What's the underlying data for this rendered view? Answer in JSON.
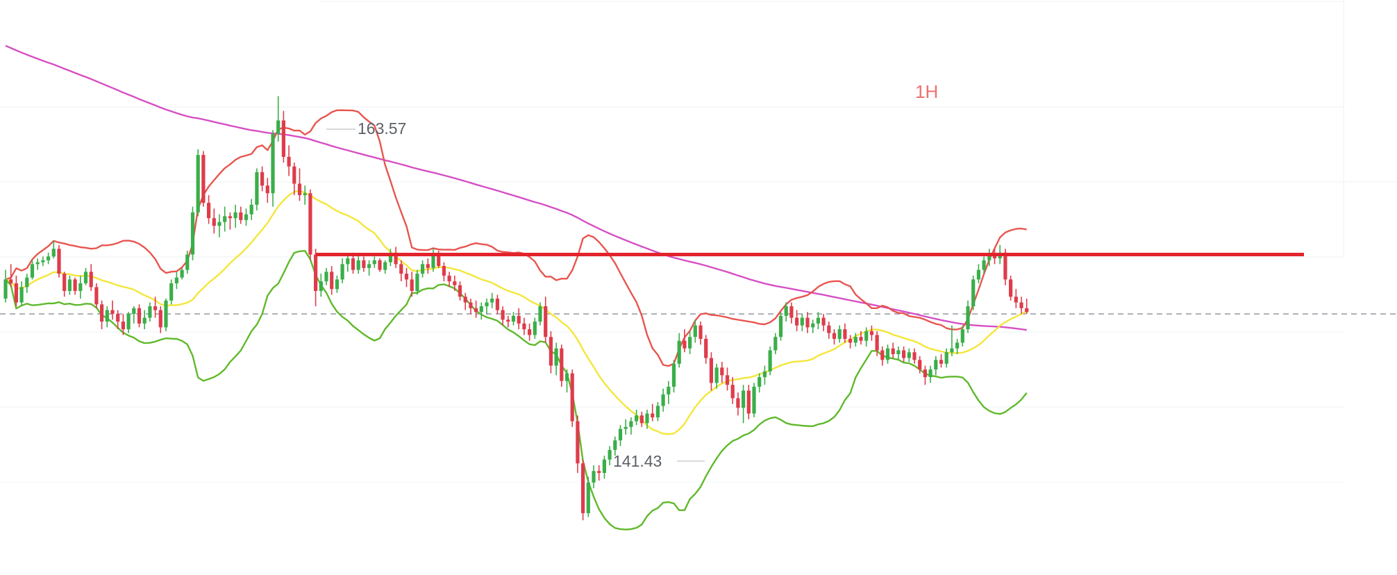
{
  "chart_data": {
    "type": "candlestick",
    "timeframe_label": "1H",
    "high_label": "163.57",
    "low_label": "141.43",
    "y_range": [
      138.5,
      167.5
    ],
    "grid": true,
    "horizontal_level": 155.3,
    "current_price_line": 152.2,
    "candles": [
      [
        153.0,
        154.5,
        152.8,
        154.0
      ],
      [
        154.0,
        154.8,
        153.6,
        153.8
      ],
      [
        153.8,
        154.2,
        152.6,
        152.8
      ],
      [
        152.8,
        153.9,
        152.6,
        153.6
      ],
      [
        153.6,
        154.3,
        153.3,
        154.1
      ],
      [
        154.1,
        155.0,
        154.0,
        154.8
      ],
      [
        154.8,
        155.1,
        154.5,
        154.9
      ],
      [
        154.9,
        155.2,
        154.7,
        155.0
      ],
      [
        155.0,
        155.4,
        154.8,
        155.2
      ],
      [
        155.2,
        156.0,
        155.1,
        155.6
      ],
      [
        155.6,
        155.8,
        154.1,
        154.3
      ],
      [
        154.3,
        154.4,
        153.1,
        153.4
      ],
      [
        153.4,
        154.2,
        153.2,
        154.0
      ],
      [
        154.0,
        154.1,
        153.2,
        153.4
      ],
      [
        153.4,
        154.2,
        153.0,
        153.8
      ],
      [
        153.8,
        154.6,
        153.7,
        154.4
      ],
      [
        154.4,
        154.8,
        153.4,
        153.6
      ],
      [
        153.6,
        153.8,
        152.5,
        152.7
      ],
      [
        152.7,
        152.9,
        151.4,
        151.8
      ],
      [
        151.8,
        152.6,
        151.5,
        152.4
      ],
      [
        152.4,
        152.9,
        151.9,
        152.2
      ],
      [
        152.2,
        152.4,
        151.4,
        151.8
      ],
      [
        151.8,
        152.2,
        151.1,
        151.4
      ],
      [
        151.4,
        152.3,
        151.2,
        152.2
      ],
      [
        152.2,
        152.6,
        151.7,
        152.5
      ],
      [
        152.5,
        152.7,
        151.5,
        151.7
      ],
      [
        151.7,
        152.4,
        151.4,
        152.0
      ],
      [
        152.0,
        152.8,
        151.8,
        152.6
      ],
      [
        152.6,
        153.1,
        152.0,
        152.4
      ],
      [
        152.4,
        152.6,
        151.2,
        151.5
      ],
      [
        151.5,
        153.0,
        151.3,
        152.9
      ],
      [
        152.9,
        154.0,
        152.7,
        153.8
      ],
      [
        153.8,
        154.4,
        153.5,
        154.1
      ],
      [
        154.1,
        154.6,
        154.0,
        154.5
      ],
      [
        154.5,
        155.5,
        154.3,
        155.3
      ],
      [
        155.3,
        157.8,
        155.0,
        157.5
      ],
      [
        157.5,
        160.8,
        157.3,
        160.5
      ],
      [
        160.5,
        160.7,
        157.8,
        158.0
      ],
      [
        158.0,
        158.4,
        156.9,
        157.2
      ],
      [
        157.2,
        157.7,
        156.4,
        156.8
      ],
      [
        156.8,
        157.4,
        156.2,
        157.0
      ],
      [
        157.0,
        157.8,
        156.5,
        157.3
      ],
      [
        157.3,
        157.5,
        156.6,
        157.2
      ],
      [
        157.2,
        157.9,
        156.7,
        157.5
      ],
      [
        157.5,
        157.8,
        156.9,
        157.1
      ],
      [
        157.1,
        157.7,
        156.8,
        157.4
      ],
      [
        157.4,
        158.2,
        157.1,
        157.9
      ],
      [
        157.9,
        159.8,
        157.6,
        159.6
      ],
      [
        159.6,
        159.9,
        158.6,
        158.9
      ],
      [
        158.9,
        159.3,
        158.0,
        158.5
      ],
      [
        158.5,
        161.8,
        157.8,
        161.6
      ],
      [
        161.6,
        163.57,
        161.2,
        162.3
      ],
      [
        162.3,
        162.8,
        160.1,
        160.4
      ],
      [
        160.4,
        161.0,
        159.4,
        159.9
      ],
      [
        159.9,
        160.1,
        158.4,
        159.0
      ],
      [
        159.0,
        159.8,
        158.1,
        158.4
      ],
      [
        158.4,
        158.9,
        157.9,
        158.5
      ],
      [
        158.5,
        158.7,
        155.0,
        155.3
      ],
      [
        155.3,
        155.6,
        152.6,
        153.4
      ],
      [
        153.4,
        154.3,
        153.1,
        153.9
      ],
      [
        153.9,
        154.6,
        153.7,
        154.4
      ],
      [
        154.4,
        154.7,
        153.2,
        153.5
      ],
      [
        153.5,
        154.2,
        153.3,
        154.0
      ],
      [
        154.0,
        155.1,
        153.8,
        154.8
      ],
      [
        154.8,
        155.3,
        154.4,
        155.1
      ],
      [
        155.1,
        155.4,
        154.3,
        154.5
      ],
      [
        154.5,
        155.3,
        154.3,
        155.0
      ],
      [
        155.0,
        155.2,
        154.4,
        154.6
      ],
      [
        154.6,
        155.0,
        154.2,
        154.8
      ],
      [
        154.8,
        155.2,
        154.6,
        155.0
      ],
      [
        155.0,
        155.1,
        154.4,
        154.5
      ],
      [
        154.5,
        155.0,
        154.3,
        154.9
      ],
      [
        154.9,
        155.6,
        154.7,
        155.4
      ],
      [
        155.4,
        155.7,
        154.6,
        154.8
      ],
      [
        154.8,
        155.0,
        153.9,
        154.3
      ],
      [
        154.3,
        154.6,
        153.6,
        154.0
      ],
      [
        154.0,
        154.4,
        153.1,
        153.4
      ],
      [
        153.4,
        154.5,
        153.2,
        154.3
      ],
      [
        154.3,
        155.0,
        154.1,
        154.8
      ],
      [
        154.8,
        155.1,
        154.3,
        154.6
      ],
      [
        154.6,
        155.6,
        154.4,
        155.3
      ],
      [
        155.3,
        155.5,
        154.6,
        154.7
      ],
      [
        154.7,
        154.9,
        153.9,
        154.2
      ],
      [
        154.2,
        154.4,
        153.6,
        153.9
      ],
      [
        153.9,
        154.2,
        153.4,
        153.7
      ],
      [
        153.7,
        153.9,
        152.9,
        153.1
      ],
      [
        153.1,
        153.3,
        152.4,
        152.8
      ],
      [
        152.8,
        153.0,
        152.2,
        152.5
      ],
      [
        152.5,
        152.9,
        152.0,
        152.3
      ],
      [
        152.3,
        152.8,
        151.9,
        152.6
      ],
      [
        152.6,
        153.0,
        152.2,
        152.8
      ],
      [
        152.8,
        153.3,
        152.5,
        153.0
      ],
      [
        153.0,
        153.2,
        152.2,
        152.4
      ],
      [
        152.4,
        152.6,
        151.6,
        151.9
      ],
      [
        151.9,
        152.1,
        151.5,
        151.8
      ],
      [
        151.8,
        152.3,
        151.6,
        152.1
      ],
      [
        152.1,
        152.5,
        151.4,
        151.7
      ],
      [
        151.7,
        152.0,
        151.1,
        151.4
      ],
      [
        151.4,
        151.7,
        150.8,
        151.1
      ],
      [
        151.1,
        152.0,
        150.9,
        151.8
      ],
      [
        151.8,
        152.8,
        151.6,
        152.6
      ],
      [
        152.6,
        153.1,
        150.7,
        151.0
      ],
      [
        151.0,
        151.3,
        149.1,
        149.5
      ],
      [
        149.5,
        150.7,
        149.0,
        150.4
      ],
      [
        150.4,
        150.6,
        148.4,
        148.7
      ],
      [
        148.7,
        149.3,
        148.1,
        149.1
      ],
      [
        149.1,
        149.3,
        146.3,
        146.6
      ],
      [
        146.6,
        146.9,
        143.9,
        144.4
      ],
      [
        144.4,
        144.6,
        141.43,
        141.8
      ],
      [
        141.8,
        143.7,
        141.6,
        143.4
      ],
      [
        143.4,
        144.3,
        143.1,
        144.0
      ],
      [
        144.0,
        144.3,
        143.5,
        143.9
      ],
      [
        143.9,
        144.8,
        143.6,
        144.6
      ],
      [
        144.6,
        145.3,
        144.3,
        145.1
      ],
      [
        145.1,
        145.8,
        144.8,
        145.6
      ],
      [
        145.6,
        146.4,
        145.3,
        146.2
      ],
      [
        146.2,
        146.7,
        145.9,
        146.3
      ],
      [
        146.3,
        146.8,
        145.9,
        146.6
      ],
      [
        146.6,
        147.2,
        146.4,
        146.9
      ],
      [
        146.9,
        147.1,
        146.3,
        146.5
      ],
      [
        146.5,
        147.2,
        146.2,
        147.0
      ],
      [
        147.0,
        147.5,
        146.6,
        146.8
      ],
      [
        146.8,
        147.6,
        146.6,
        147.4
      ],
      [
        147.4,
        148.3,
        147.1,
        148.0
      ],
      [
        148.0,
        148.7,
        147.5,
        148.4
      ],
      [
        148.4,
        149.8,
        148.1,
        149.6
      ],
      [
        149.6,
        151.2,
        149.4,
        150.8
      ],
      [
        150.8,
        151.4,
        150.2,
        150.4
      ],
      [
        150.4,
        151.3,
        150.1,
        151.0
      ],
      [
        151.0,
        151.9,
        150.7,
        151.6
      ],
      [
        151.6,
        151.8,
        150.6,
        150.9
      ],
      [
        150.9,
        151.1,
        149.6,
        149.9
      ],
      [
        149.9,
        150.2,
        148.2,
        148.6
      ],
      [
        148.6,
        149.6,
        148.3,
        149.4
      ],
      [
        149.4,
        149.7,
        148.6,
        149.0
      ],
      [
        149.0,
        149.4,
        148.2,
        148.5
      ],
      [
        148.5,
        148.9,
        147.5,
        147.8
      ],
      [
        147.8,
        148.1,
        146.9,
        147.3
      ],
      [
        147.3,
        148.5,
        146.5,
        148.2
      ],
      [
        148.2,
        148.5,
        146.7,
        147.0
      ],
      [
        147.0,
        148.6,
        146.8,
        148.4
      ],
      [
        148.4,
        149.1,
        148.1,
        148.9
      ],
      [
        148.9,
        149.5,
        148.5,
        149.2
      ],
      [
        149.2,
        150.5,
        149.0,
        150.3
      ],
      [
        150.3,
        151.2,
        150.1,
        151.0
      ],
      [
        151.0,
        152.3,
        150.8,
        152.1
      ],
      [
        152.1,
        152.8,
        151.8,
        152.6
      ],
      [
        152.6,
        152.8,
        151.7,
        152.0
      ],
      [
        152.0,
        152.4,
        151.3,
        151.6
      ],
      [
        151.6,
        152.2,
        151.3,
        152.0
      ],
      [
        152.0,
        152.3,
        151.2,
        151.5
      ],
      [
        151.5,
        151.9,
        151.2,
        151.7
      ],
      [
        151.7,
        152.3,
        151.4,
        152.0
      ],
      [
        152.0,
        152.2,
        151.3,
        151.6
      ],
      [
        151.6,
        151.8,
        150.9,
        151.2
      ],
      [
        151.2,
        151.4,
        150.6,
        150.9
      ],
      [
        150.9,
        151.6,
        150.7,
        151.4
      ],
      [
        151.4,
        151.7,
        150.7,
        150.9
      ],
      [
        150.9,
        151.1,
        150.4,
        150.7
      ],
      [
        150.7,
        151.2,
        150.5,
        151.0
      ],
      [
        151.0,
        151.3,
        150.6,
        150.8
      ],
      [
        150.8,
        151.5,
        150.5,
        151.3
      ],
      [
        151.3,
        151.6,
        150.8,
        151.1
      ],
      [
        151.1,
        151.3,
        150.0,
        150.3
      ],
      [
        150.3,
        150.5,
        149.5,
        149.8
      ],
      [
        149.8,
        150.6,
        149.6,
        150.4
      ],
      [
        150.4,
        150.7,
        149.9,
        150.1
      ],
      [
        150.1,
        150.5,
        149.8,
        150.3
      ],
      [
        150.3,
        150.5,
        149.7,
        149.9
      ],
      [
        149.9,
        150.4,
        149.7,
        150.2
      ],
      [
        150.2,
        150.4,
        149.6,
        149.8
      ],
      [
        149.8,
        150.0,
        149.1,
        149.3
      ],
      [
        149.3,
        149.5,
        148.5,
        148.9
      ],
      [
        148.9,
        149.5,
        148.6,
        149.3
      ],
      [
        149.3,
        150.0,
        149.0,
        149.8
      ],
      [
        149.8,
        150.1,
        149.4,
        149.6
      ],
      [
        149.6,
        150.4,
        149.4,
        150.2
      ],
      [
        150.2,
        151.6,
        150.0,
        150.4
      ],
      [
        150.4,
        150.9,
        150.1,
        150.7
      ],
      [
        150.7,
        151.6,
        150.5,
        151.4
      ],
      [
        151.4,
        152.9,
        151.2,
        152.6
      ],
      [
        152.6,
        154.2,
        152.4,
        154.0
      ],
      [
        154.0,
        154.8,
        153.8,
        154.5
      ],
      [
        154.5,
        155.2,
        154.3,
        155.0
      ],
      [
        155.0,
        155.6,
        154.7,
        155.3
      ],
      [
        155.3,
        155.6,
        154.8,
        155.1
      ],
      [
        155.1,
        155.8,
        154.8,
        155.4
      ],
      [
        155.4,
        155.6,
        153.7,
        154.0
      ],
      [
        154.0,
        154.2,
        152.9,
        153.1
      ],
      [
        153.1,
        153.5,
        152.5,
        152.8
      ],
      [
        152.8,
        153.1,
        152.2,
        152.5
      ],
      [
        152.5,
        153.0,
        152.2,
        152.3
      ]
    ],
    "x_start": 8,
    "x_step": 7.7
  }
}
